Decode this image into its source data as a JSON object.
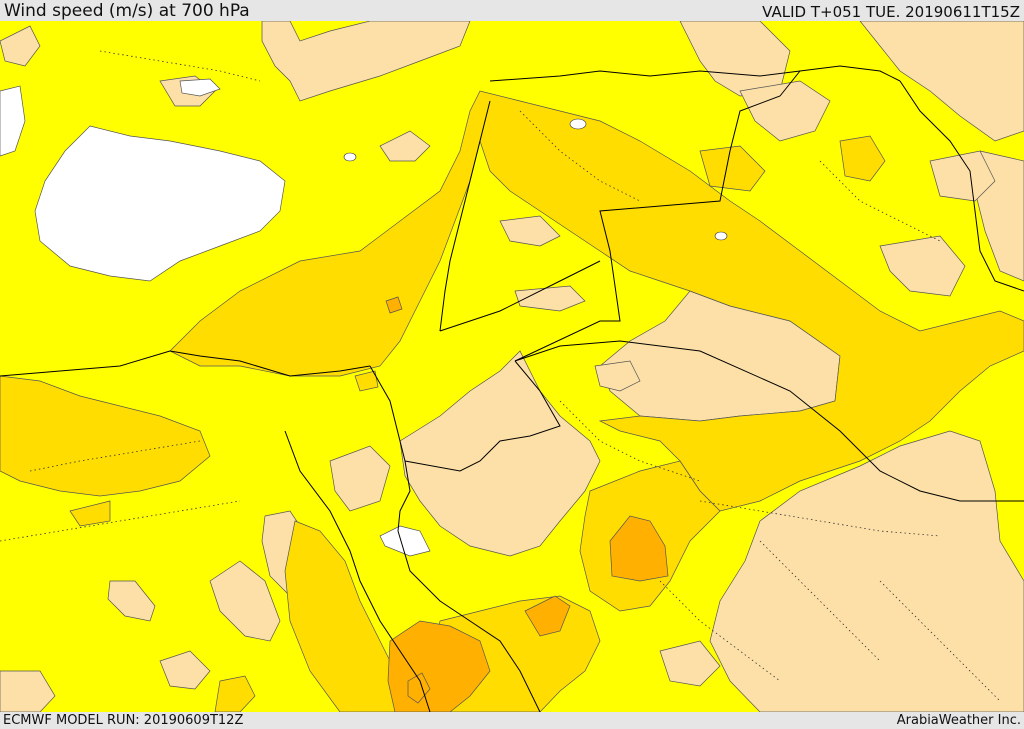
{
  "header": {
    "title": "Wind speed (m/s) at 700 hPa",
    "valid_time": "VALID T+051 TUE. 20190611T15Z"
  },
  "footer": {
    "model_run": "ECMWF MODEL RUN: 20190609T12Z",
    "credit": "ArabiaWeather Inc."
  },
  "map": {
    "colors": {
      "background_field": "#ffff00",
      "light_peach": "#fde0a8",
      "gold": "#ffdd00",
      "orange": "#ffb000",
      "water_white": "#ffffff",
      "border_line": "#000000",
      "contour_line": "#444444"
    }
  }
}
